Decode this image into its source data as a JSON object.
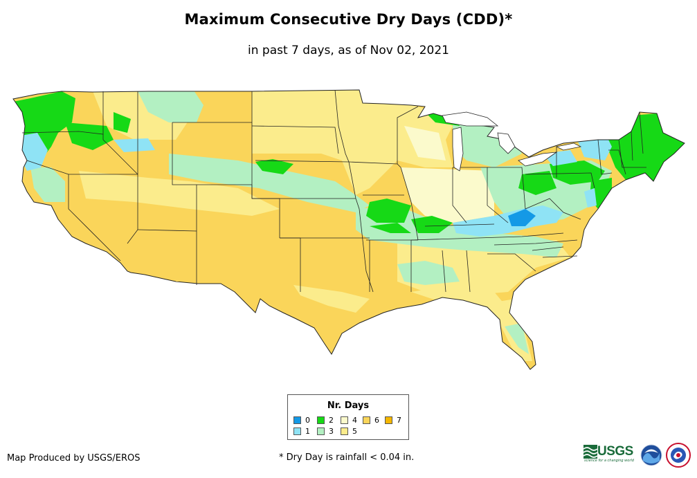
{
  "title": "Maximum Consecutive Dry Days (CDD)*",
  "subtitle": "in past 7 days, as of Nov 02, 2021",
  "legend": {
    "title": "Nr. Days",
    "items": [
      {
        "label": "0",
        "color": "#1499e6"
      },
      {
        "label": "1",
        "color": "#8fe3f5"
      },
      {
        "label": "2",
        "color": "#16d916"
      },
      {
        "label": "3",
        "color": "#b3f0c2"
      },
      {
        "label": "4",
        "color": "#fbfacc"
      },
      {
        "label": "5",
        "color": "#fbec8c"
      },
      {
        "label": "6",
        "color": "#fad55a"
      },
      {
        "label": "7",
        "color": "#f5b700"
      }
    ]
  },
  "footer": {
    "credit": "Map Produced by USGS/EROS",
    "note": "* Dry Day is rainfall < 0.04 in."
  },
  "logos": {
    "usgs": "USGS",
    "usgs_tagline": "science for a changing world"
  }
}
